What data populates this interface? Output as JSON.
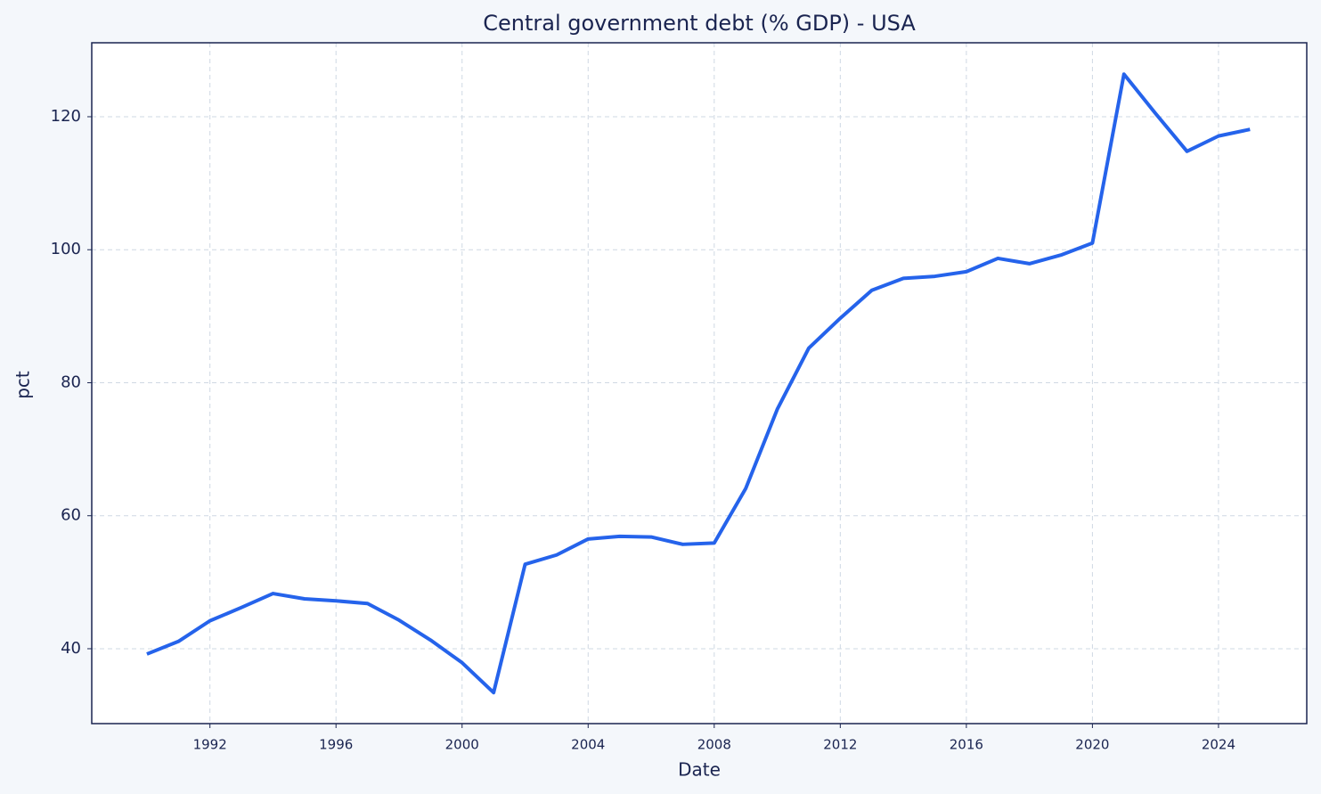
{
  "chart_data": {
    "type": "line",
    "title": "Central government debt (% GDP) - USA",
    "x_label": "Date",
    "y_label": "pct",
    "x": [
      1990,
      1991,
      1992,
      1993,
      1994,
      1995,
      1996,
      1997,
      1998,
      1999,
      2000,
      2001,
      2002,
      2003,
      2004,
      2005,
      2006,
      2007,
      2008,
      2009,
      2010,
      2011,
      2012,
      2013,
      2014,
      2015,
      2016,
      2017,
      2018,
      2019,
      2020,
      2021,
      2022,
      2023,
      2024,
      2025
    ],
    "series": [
      {
        "name": "USA",
        "color": "#2563eb",
        "values": [
          39.2,
          41.1,
          44.2,
          46.2,
          48.3,
          47.5,
          47.2,
          46.8,
          44.3,
          41.3,
          37.9,
          33.4,
          52.7,
          54.1,
          56.5,
          56.9,
          56.8,
          55.7,
          55.9,
          64.1,
          76.0,
          85.2,
          89.7,
          93.9,
          95.7,
          96.0,
          96.7,
          98.7,
          97.9,
          99.2,
          101.0,
          126.4,
          120.5,
          114.8,
          117.1,
          118.1
        ]
      }
    ],
    "xlim": [
      1988.25,
      2026.8
    ],
    "xticks": [
      1992,
      1996,
      2000,
      2004,
      2008,
      2012,
      2016,
      2020,
      2024
    ],
    "ylim": [
      28.74,
      131.12
    ],
    "yticks": [
      40,
      60,
      80,
      100,
      120
    ],
    "grid": true
  }
}
